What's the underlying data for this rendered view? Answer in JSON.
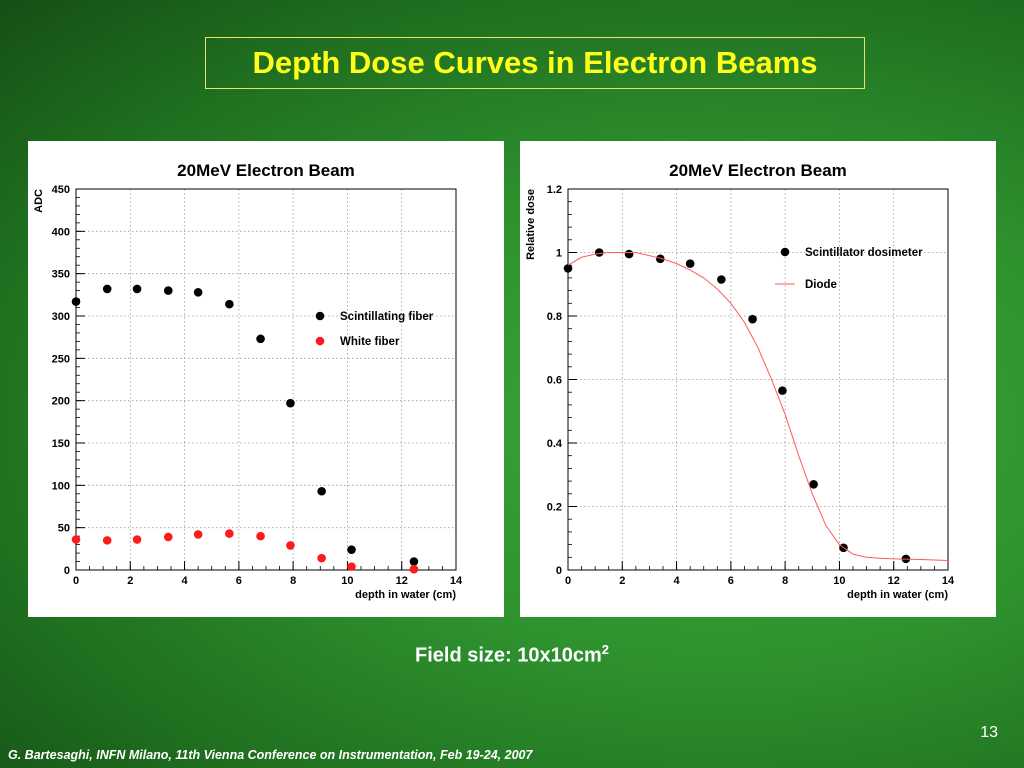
{
  "slide": {
    "title": "Depth Dose Curves in Electron Beams",
    "caption": "Field size: 10x10cm",
    "caption_sup": "2",
    "page_number": "13",
    "footer": "G. Bartesaghi, INFN Milano, 11th Vienna Conference on Instrumentation, Feb 19-24, 2007",
    "background_color": "#2e922e",
    "title_color": "#ffff1a"
  },
  "chart_data": [
    {
      "type": "scatter",
      "title": "20MeV Electron Beam",
      "xlabel": "depth in water (cm)",
      "ylabel": "ADC",
      "xlim": [
        0,
        14
      ],
      "ylim": [
        0,
        450
      ],
      "xticks": [
        0,
        2,
        4,
        6,
        8,
        10,
        12,
        14
      ],
      "yticks": [
        0,
        50,
        100,
        150,
        200,
        250,
        300,
        350,
        400,
        450
      ],
      "grid": true,
      "legend_position": "right",
      "series": [
        {
          "name": "Scintillating fiber",
          "color": "#000000",
          "x": [
            0,
            1.15,
            2.25,
            3.4,
            4.5,
            5.65,
            6.8,
            7.9,
            9.05,
            10.15,
            12.45
          ],
          "y": [
            317,
            332,
            332,
            330,
            328,
            314,
            273,
            197,
            93,
            24,
            10
          ]
        },
        {
          "name": "White fiber",
          "color": "#ff1a1a",
          "x": [
            0,
            1.15,
            2.25,
            3.4,
            4.5,
            5.65,
            6.8,
            7.9,
            9.05,
            10.15,
            12.45
          ],
          "y": [
            36,
            35,
            36,
            39,
            42,
            43,
            40,
            29,
            14,
            4,
            1
          ]
        }
      ]
    },
    {
      "type": "scatter",
      "title": "20MeV Electron Beam",
      "xlabel": "depth in water (cm)",
      "ylabel": "Relative dose",
      "xlim": [
        0,
        14
      ],
      "ylim": [
        0,
        1.2
      ],
      "xticks": [
        0,
        2,
        4,
        6,
        8,
        10,
        12,
        14
      ],
      "yticks": [
        0,
        0.2,
        0.4,
        0.6,
        0.8,
        1,
        1.2
      ],
      "grid": true,
      "legend_position": "top-right",
      "series": [
        {
          "name": "Scintillator dosimeter",
          "color": "#000000",
          "x": [
            0,
            1.15,
            2.25,
            3.4,
            4.5,
            5.65,
            6.8,
            7.9,
            9.05,
            10.15,
            12.45
          ],
          "y": [
            0.95,
            1.0,
            0.995,
            0.98,
            0.965,
            0.915,
            0.79,
            0.565,
            0.27,
            0.07,
            0.035
          ]
        },
        {
          "name": "Diode",
          "type": "line",
          "color": "#ff5a5a",
          "x": [
            0,
            0.5,
            1,
            1.5,
            2,
            2.5,
            3,
            3.5,
            4,
            4.5,
            5,
            5.5,
            6,
            6.5,
            7,
            7.5,
            8,
            8.5,
            9,
            9.5,
            10,
            10.5,
            11,
            11.5,
            12,
            13,
            14
          ],
          "y": [
            0.96,
            0.985,
            0.995,
            1.0,
            1.0,
            1.0,
            0.99,
            0.98,
            0.965,
            0.945,
            0.92,
            0.885,
            0.84,
            0.78,
            0.7,
            0.6,
            0.49,
            0.36,
            0.24,
            0.14,
            0.08,
            0.05,
            0.04,
            0.037,
            0.035,
            0.033,
            0.03
          ]
        }
      ]
    }
  ]
}
